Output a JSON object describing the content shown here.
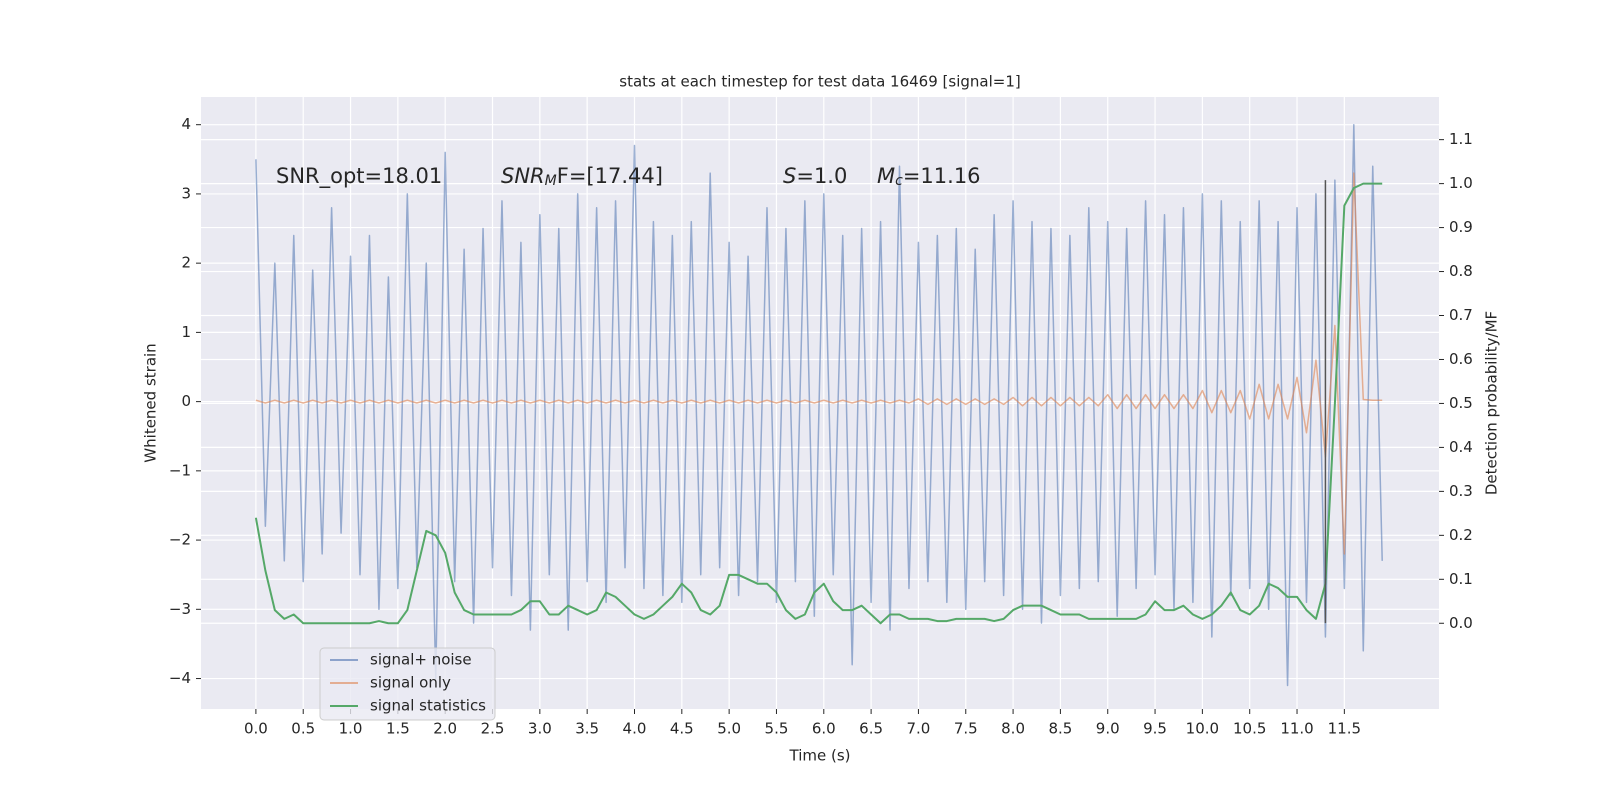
{
  "chart_data": {
    "type": "line",
    "title": "stats at each timestep for test data 16469 [signal=1]",
    "xlabel": "Time (s)",
    "ylabel": "Whitened strain",
    "y2label": "Detection probability/MF",
    "annotations": [
      {
        "parts": [
          "SNR_opt=18.01"
        ]
      },
      {
        "parts": [
          "SNR",
          "M",
          "F=[17.44]"
        ]
      },
      {
        "parts": [
          "S",
          "=1.0"
        ]
      },
      {
        "parts": [
          "M",
          "c",
          "=11.16"
        ]
      }
    ],
    "grid": true,
    "legend": "lower left",
    "xlim": [
      -0.58,
      12.5
    ],
    "ylim": [
      -4.44,
      4.4
    ],
    "y2lim": [
      -0.195,
      1.197
    ],
    "xticks": [
      {
        "value": 0,
        "label": "0.0"
      },
      0.5,
      {
        "value": 1,
        "label": "1.0"
      },
      1.5,
      {
        "value": 2,
        "label": "2.0"
      },
      2.5,
      {
        "value": 3,
        "label": "3.0"
      },
      3.5,
      {
        "value": 4,
        "label": "4.0"
      },
      4.5,
      {
        "value": 5,
        "label": "5.0"
      },
      5.5,
      {
        "value": 6,
        "label": "6.0"
      },
      6.5,
      {
        "value": 7,
        "label": "7.0"
      },
      7.5,
      {
        "value": 8,
        "label": "8.0"
      },
      8.5,
      {
        "value": 9,
        "label": "9.0"
      },
      9.5,
      {
        "value": 10,
        "label": "10.0"
      },
      10.5,
      {
        "value": 11,
        "label": "11.0"
      },
      11.5
    ],
    "yticks": [
      {
        "value": -4,
        "label": "−4"
      },
      {
        "value": -3,
        "label": "−3"
      },
      {
        "value": -2,
        "label": "−2"
      },
      {
        "value": -1,
        "label": "−1"
      },
      0,
      1,
      2,
      3,
      4
    ],
    "y2ticks": [
      {
        "value": 0,
        "label": "0.0"
      },
      0.1,
      0.2,
      0.3,
      0.4,
      0.5,
      0.6,
      0.7,
      0.8,
      0.9,
      {
        "value": 1,
        "label": "1.0"
      },
      1.1
    ],
    "x": [
      0,
      0.1,
      0.2,
      0.3,
      0.4,
      0.5,
      0.6,
      0.7,
      0.8,
      0.9,
      1,
      1.1,
      1.2,
      1.3,
      1.4,
      1.5,
      1.6,
      1.7,
      1.8,
      1.9,
      2,
      2.1,
      2.2,
      2.3,
      2.4,
      2.5,
      2.6,
      2.7,
      2.8,
      2.9,
      3,
      3.1,
      3.2,
      3.3,
      3.4,
      3.5,
      3.6,
      3.7,
      3.8,
      3.9,
      4,
      4.1,
      4.2,
      4.3,
      4.4,
      4.5,
      4.6,
      4.7,
      4.8,
      4.9,
      5,
      5.1,
      5.2,
      5.3,
      5.4,
      5.5,
      5.6,
      5.7,
      5.8,
      5.9,
      6,
      6.1,
      6.2,
      6.3,
      6.4,
      6.5,
      6.6,
      6.7,
      6.8,
      6.9,
      7,
      7.1,
      7.2,
      7.3,
      7.4,
      7.5,
      7.6,
      7.7,
      7.8,
      7.9,
      8,
      8.1,
      8.2,
      8.3,
      8.4,
      8.5,
      8.6,
      8.7,
      8.8,
      8.9,
      9,
      9.1,
      9.2,
      9.3,
      9.4,
      9.5,
      9.6,
      9.7,
      9.8,
      9.9,
      10,
      10.1,
      10.2,
      10.3,
      10.4,
      10.5,
      10.6,
      10.7,
      10.8,
      10.9,
      11,
      11.1,
      11.2,
      11.3,
      11.4,
      11.5,
      11.6,
      11.7,
      11.8,
      11.9
    ],
    "series": [
      {
        "name": "signal+ noise",
        "color": "#4c72b0",
        "values": [
          3.5,
          -1.8,
          2.0,
          -2.3,
          2.4,
          -2.6,
          1.9,
          -2.2,
          2.8,
          -1.9,
          2.1,
          -2.5,
          2.4,
          -3.0,
          1.8,
          -2.7,
          3.0,
          -2.4,
          2.0,
          -4.0,
          3.6,
          -2.6,
          2.2,
          -3.2,
          2.5,
          -2.4,
          2.9,
          -2.8,
          2.3,
          -3.3,
          2.7,
          -2.5,
          2.5,
          -3.3,
          3.0,
          -2.6,
          2.8,
          -2.9,
          2.9,
          -2.4,
          3.7,
          -2.7,
          2.6,
          -2.8,
          2.4,
          -2.9,
          2.6,
          -2.5,
          3.3,
          -2.4,
          2.3,
          -2.8,
          2.1,
          -2.6,
          2.8,
          -2.9,
          2.5,
          -2.6,
          2.9,
          -3.1,
          3.0,
          -2.5,
          2.4,
          -3.8,
          2.5,
          -2.9,
          2.6,
          -3.3,
          3.4,
          -2.7,
          2.3,
          -2.6,
          2.4,
          -2.9,
          2.5,
          -3.0,
          2.2,
          -2.6,
          2.7,
          -2.8,
          2.9,
          -3.0,
          2.6,
          -3.2,
          2.5,
          -2.8,
          2.4,
          -2.7,
          2.8,
          -2.6,
          2.6,
          -3.1,
          2.5,
          -2.7,
          2.9,
          -2.5,
          2.7,
          -3.0,
          2.8,
          -2.9,
          3.0,
          -3.4,
          2.9,
          -2.8,
          2.6,
          -2.7,
          2.9,
          -3.0,
          2.6,
          -4.1,
          2.8,
          -2.9,
          3.0,
          -3.4,
          3.2,
          -2.7,
          4.0,
          -3.6,
          3.4,
          -2.3
        ]
      },
      {
        "name": "signal only",
        "color": "#dd8452",
        "values": [
          0.02,
          -0.02,
          0.02,
          -0.02,
          0.02,
          -0.02,
          0.02,
          -0.02,
          0.02,
          -0.02,
          0.02,
          -0.02,
          0.02,
          -0.02,
          0.02,
          -0.02,
          0.02,
          -0.02,
          0.02,
          -0.02,
          0.02,
          -0.02,
          0.02,
          -0.02,
          0.02,
          -0.02,
          0.02,
          -0.02,
          0.02,
          -0.02,
          0.02,
          -0.02,
          0.02,
          -0.02,
          0.02,
          -0.02,
          0.02,
          -0.02,
          0.02,
          -0.02,
          0.02,
          -0.02,
          0.02,
          -0.02,
          0.02,
          -0.02,
          0.02,
          -0.02,
          0.02,
          -0.02,
          0.02,
          -0.02,
          0.02,
          -0.02,
          0.02,
          -0.02,
          0.02,
          -0.02,
          0.02,
          -0.02,
          0.02,
          -0.02,
          0.02,
          -0.02,
          0.02,
          -0.02,
          0.02,
          -0.02,
          0.02,
          -0.02,
          0.04,
          -0.04,
          0.04,
          -0.04,
          0.04,
          -0.04,
          0.04,
          -0.04,
          0.04,
          -0.04,
          0.06,
          -0.06,
          0.06,
          -0.06,
          0.06,
          -0.06,
          0.06,
          -0.06,
          0.06,
          -0.06,
          0.1,
          -0.1,
          0.1,
          -0.1,
          0.1,
          -0.1,
          0.1,
          -0.1,
          0.1,
          -0.1,
          0.16,
          -0.16,
          0.16,
          -0.16,
          0.16,
          -0.25,
          0.25,
          -0.25,
          0.25,
          -0.25,
          0.35,
          -0.45,
          0.6,
          -0.8,
          1.1,
          -2.2,
          3.3,
          0.03,
          0.02,
          0.02
        ]
      },
      {
        "name": "signal statistics",
        "color": "#55a868",
        "axis": "y2",
        "values": [
          0.24,
          0.12,
          0.03,
          0.01,
          0.02,
          0,
          0,
          0,
          0,
          0,
          0,
          0,
          0,
          0.005,
          0,
          0,
          0.03,
          0.12,
          0.21,
          0.2,
          0.16,
          0.07,
          0.03,
          0.02,
          0.02,
          0.02,
          0.02,
          0.02,
          0.03,
          0.05,
          0.05,
          0.02,
          0.02,
          0.04,
          0.03,
          0.02,
          0.03,
          0.07,
          0.06,
          0.04,
          0.02,
          0.01,
          0.02,
          0.04,
          0.06,
          0.09,
          0.07,
          0.03,
          0.02,
          0.04,
          0.11,
          0.11,
          0.1,
          0.09,
          0.09,
          0.07,
          0.03,
          0.01,
          0.02,
          0.07,
          0.09,
          0.05,
          0.03,
          0.03,
          0.04,
          0.02,
          0,
          0.02,
          0.02,
          0.01,
          0.01,
          0.01,
          0.005,
          0.005,
          0.01,
          0.01,
          0.01,
          0.01,
          0.005,
          0.01,
          0.03,
          0.04,
          0.04,
          0.04,
          0.03,
          0.02,
          0.02,
          0.02,
          0.01,
          0.01,
          0.01,
          0.01,
          0.01,
          0.01,
          0.02,
          0.05,
          0.03,
          0.03,
          0.04,
          0.02,
          0.01,
          0.02,
          0.04,
          0.07,
          0.03,
          0.02,
          0.04,
          0.09,
          0.08,
          0.06,
          0.06,
          0.03,
          0.01,
          0.09,
          0.5,
          0.95,
          0.99,
          1,
          1,
          1
        ]
      }
    ],
    "vline": {
      "x": 11.3,
      "y": [
        -3.2,
        3.2
      ],
      "color": "#555555"
    }
  }
}
